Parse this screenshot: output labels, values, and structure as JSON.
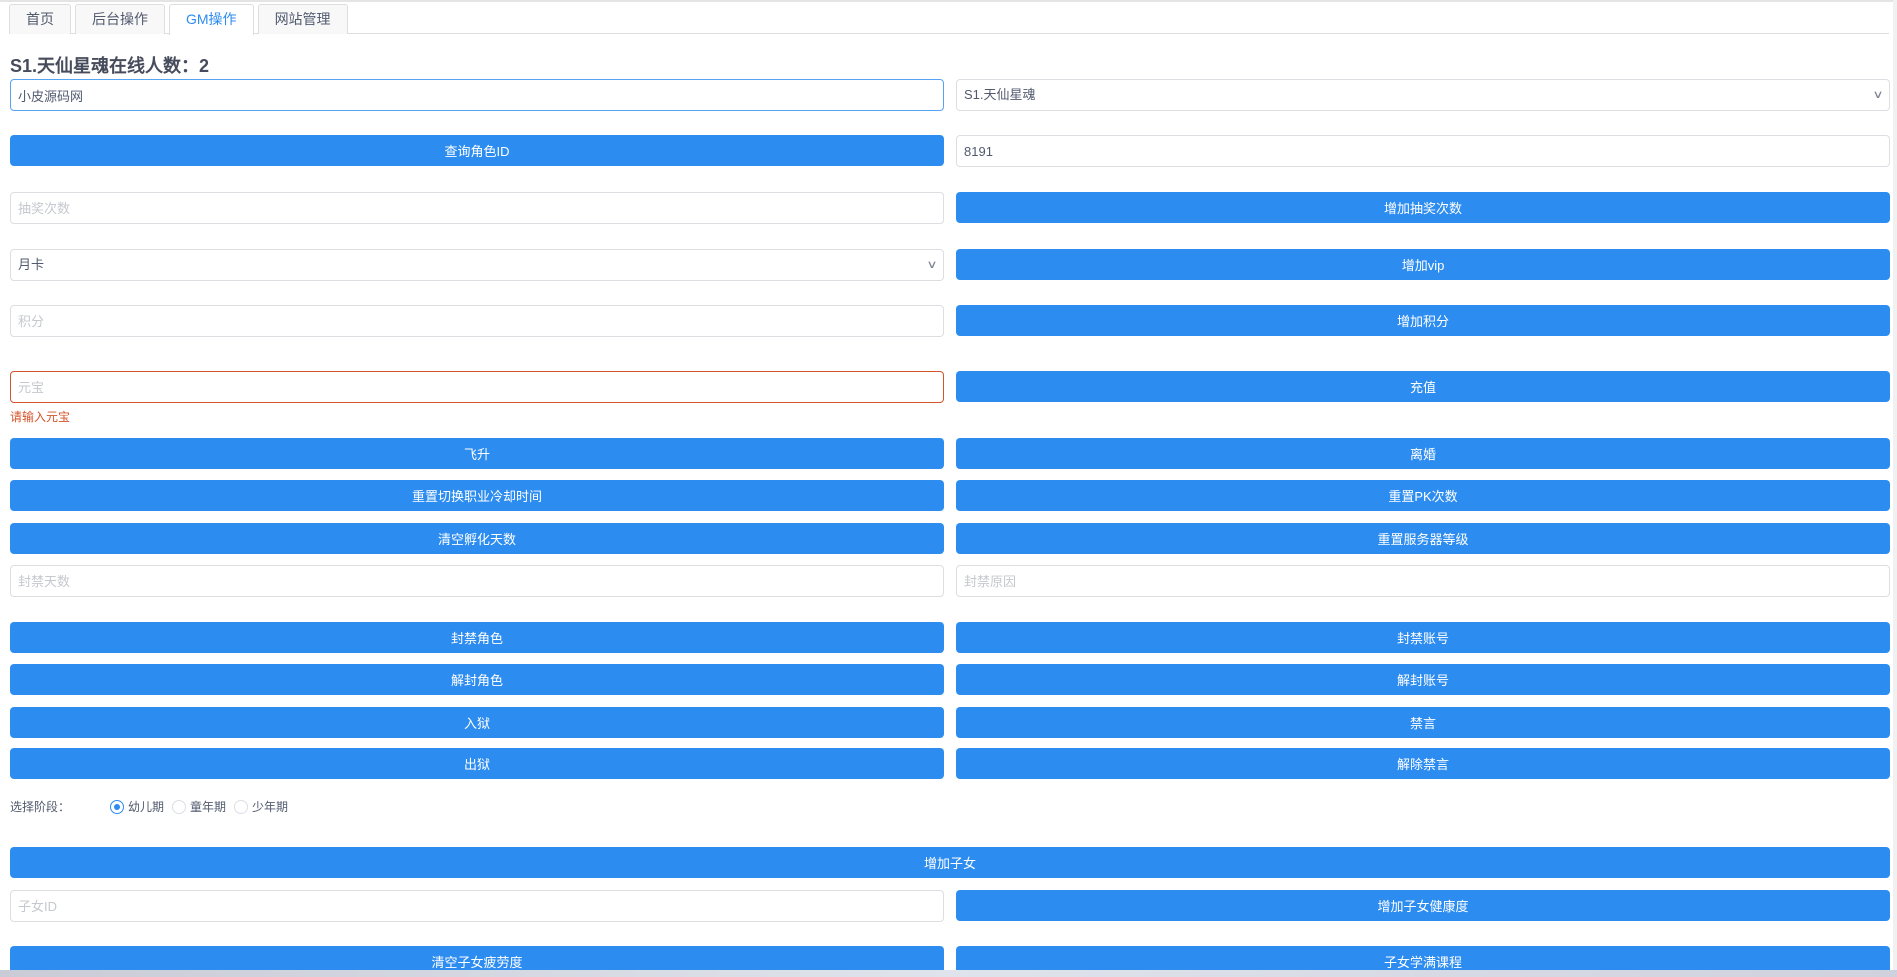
{
  "tabs": [
    {
      "label": "首页"
    },
    {
      "label": "后台操作"
    },
    {
      "label": "GM操作",
      "active": true
    },
    {
      "label": "网站管理"
    }
  ],
  "title": "S1.天仙星魂在线人数：2",
  "account_input": {
    "value": "小皮源码网"
  },
  "server_select": {
    "value": "S1.天仙星魂"
  },
  "query_role_button": "查询角色ID",
  "role_id_input": {
    "value": "8191"
  },
  "lottery_input": {
    "placeholder": "抽奖次数"
  },
  "add_lottery_button": "增加抽奖次数",
  "vip_select": {
    "value": "月卡"
  },
  "add_vip_button": "增加vip",
  "points_input": {
    "placeholder": "积分"
  },
  "add_points_button": "增加积分",
  "yuanbao_input": {
    "placeholder": "元宝",
    "error": "请输入元宝"
  },
  "recharge_button": "充值",
  "buttons_a": [
    [
      "飞升",
      "离婚"
    ],
    [
      "重置切换职业冷却时间",
      "重置PK次数"
    ],
    [
      "清空孵化天数",
      "重置服务器等级"
    ]
  ],
  "ban_days_input": {
    "placeholder": "封禁天数"
  },
  "ban_reason_input": {
    "placeholder": "封禁原因"
  },
  "buttons_b": [
    [
      "封禁角色",
      "封禁账号"
    ],
    [
      "解封角色",
      "解封账号"
    ],
    [
      "入狱",
      "禁言"
    ],
    [
      "出狱",
      "解除禁言"
    ]
  ],
  "stage": {
    "label": "选择阶段：",
    "options": [
      "幼儿期",
      "童年期",
      "少年期"
    ],
    "selected": "幼儿期"
  },
  "add_child_button": "增加子女",
  "child_id_input": {
    "placeholder": "子女ID"
  },
  "add_child_health_button": "增加子女健康度",
  "clear_child_fatigue_button": "清空子女疲劳度",
  "child_full_course_button": "子女学满课程",
  "colors": {
    "primary": "#2d8cf0",
    "error": "#d4542a"
  }
}
